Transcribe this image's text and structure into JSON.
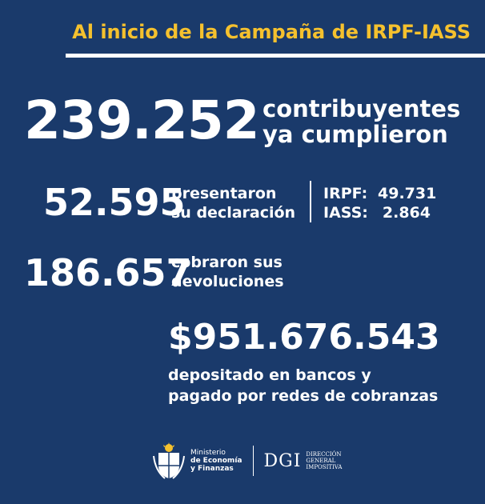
{
  "header": {
    "title": "Al inicio de la Campaña de IRPF-IASS"
  },
  "headline": {
    "number": "239.252",
    "label_line1": "contribuyentes",
    "label_line2": "ya cumplieron"
  },
  "declarations": {
    "number": "52.595",
    "label_line1": "presentaron",
    "label_line2": "su declaración",
    "breakdown": [
      {
        "key": "IRPF:",
        "value": "49.731"
      },
      {
        "key": "IASS:",
        "value": "2.864"
      }
    ]
  },
  "refunds": {
    "number": "186.657",
    "label_line1": "cobraron sus",
    "label_line2": "devoluciones"
  },
  "amount": {
    "number": "$951.676.543",
    "label_line1": "depositado en bancos y",
    "label_line2": "pagado por redes de cobranzas"
  },
  "footer": {
    "mef_line1": "Ministerio",
    "mef_line2": "de Economía",
    "mef_line3": "y Finanzas",
    "dgi_logo": "DGI",
    "dgi_line1": "DIRECCIÓN",
    "dgi_line2": "GENERAL",
    "dgi_line3": "IMPOSITIVA"
  },
  "colors": {
    "background": "#1a3a6b",
    "title": "#f5c12e",
    "text": "#ffffff"
  }
}
